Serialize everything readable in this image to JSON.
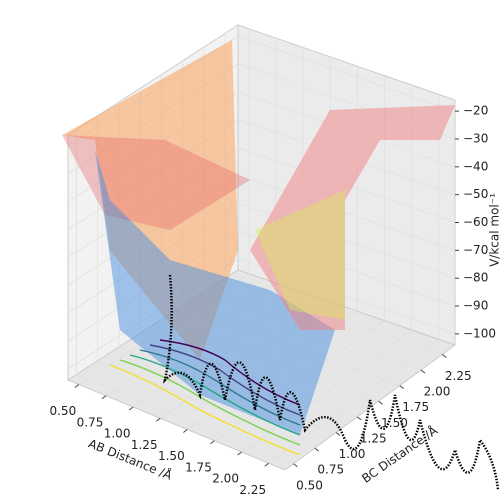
{
  "chart_data": {
    "type": "surface3d",
    "xlabel": "AB Distance /Å",
    "ylabel": "BC Distance /Å",
    "zlabel": "V/kcal mol⁻¹",
    "xlim": [
      0.4,
      2.4
    ],
    "xticks": [
      {
        "value": 0.5,
        "label": "0.50"
      },
      {
        "value": 0.75,
        "label": "0.75"
      },
      {
        "value": 1.0,
        "label": "1.00"
      },
      {
        "value": 1.25,
        "label": "1.25"
      },
      {
        "value": 1.5,
        "label": "1.50"
      },
      {
        "value": 1.75,
        "label": "1.75"
      },
      {
        "value": 2.0,
        "label": "2.00"
      },
      {
        "value": 2.25,
        "label": "2.25"
      }
    ],
    "ylim": [
      0.4,
      2.4
    ],
    "yticks": [
      {
        "value": 0.5,
        "label": "0.50"
      },
      {
        "value": 0.75,
        "label": "0.75"
      },
      {
        "value": 1.0,
        "label": "1.00"
      },
      {
        "value": 1.25,
        "label": "1.25"
      },
      {
        "value": 1.5,
        "label": "1.50"
      },
      {
        "value": 1.75,
        "label": "1.75"
      },
      {
        "value": 2.0,
        "label": "2.00"
      },
      {
        "value": 2.25,
        "label": "2.25"
      }
    ],
    "zlim": [
      -104,
      -16
    ],
    "zticks": [
      {
        "value": -100,
        "label": "−100"
      },
      {
        "value": -90,
        "label": "−90"
      },
      {
        "value": -80,
        "label": "−80"
      },
      {
        "value": -70,
        "label": "−70"
      },
      {
        "value": -60,
        "label": "−60"
      },
      {
        "value": -50,
        "label": "−50"
      },
      {
        "value": -40,
        "label": "−40"
      },
      {
        "value": -30,
        "label": "−30"
      },
      {
        "value": -20,
        "label": "−20"
      }
    ],
    "grid": true
  }
}
